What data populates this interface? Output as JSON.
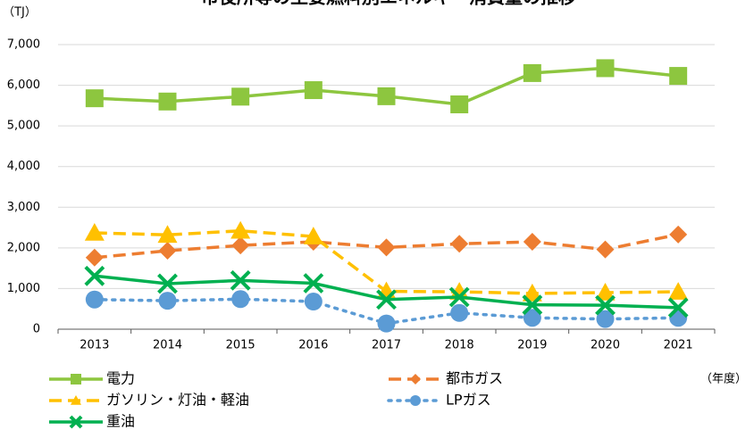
{
  "chart_data": {
    "type": "line",
    "title": "市役所等の主要燃料別エネルギー消費量の推移",
    "y_label": "（TJ）",
    "x_label": "（年度）",
    "categories": [
      "2013",
      "2014",
      "2015",
      "2016",
      "2017",
      "2018",
      "2019",
      "2020",
      "2021"
    ],
    "series": [
      {
        "name": "電力",
        "color": "#8dc63f",
        "dash": "solid",
        "marker": "square",
        "values": [
          5680,
          5600,
          5720,
          5880,
          5730,
          5530,
          6300,
          6420,
          6230
        ]
      },
      {
        "name": "都市ガス",
        "color": "#ed7d31",
        "dash": "dashed",
        "marker": "diamond",
        "values": [
          1760,
          1930,
          2060,
          2150,
          2010,
          2100,
          2150,
          1960,
          2330
        ]
      },
      {
        "name": "ガソリン・灯油・軽油",
        "color": "#ffc000",
        "dash": "dashed",
        "marker": "triangle",
        "values": [
          2370,
          2320,
          2420,
          2280,
          930,
          920,
          880,
          900,
          920
        ]
      },
      {
        "name": "LPガス",
        "color": "#5b9bd5",
        "dash": "dotted",
        "marker": "circle",
        "values": [
          730,
          700,
          740,
          680,
          140,
          400,
          280,
          250,
          280
        ]
      },
      {
        "name": "重油",
        "color": "#00b050",
        "dash": "solid",
        "marker": "x",
        "values": [
          1310,
          1120,
          1200,
          1130,
          730,
          790,
          600,
          590,
          530
        ]
      }
    ],
    "ylim": [
      0,
      7000
    ],
    "yticks": [
      0,
      {
        "value": 1000,
        "label": "1,000"
      },
      {
        "value": 2000,
        "label": "2,000"
      },
      {
        "value": 3000,
        "label": "3,000"
      },
      {
        "value": 4000,
        "label": "4,000"
      },
      {
        "value": 5000,
        "label": "5,000"
      },
      {
        "value": 6000,
        "label": "6,000"
      },
      {
        "value": 7000,
        "label": "7,000"
      }
    ],
    "grid": true
  }
}
